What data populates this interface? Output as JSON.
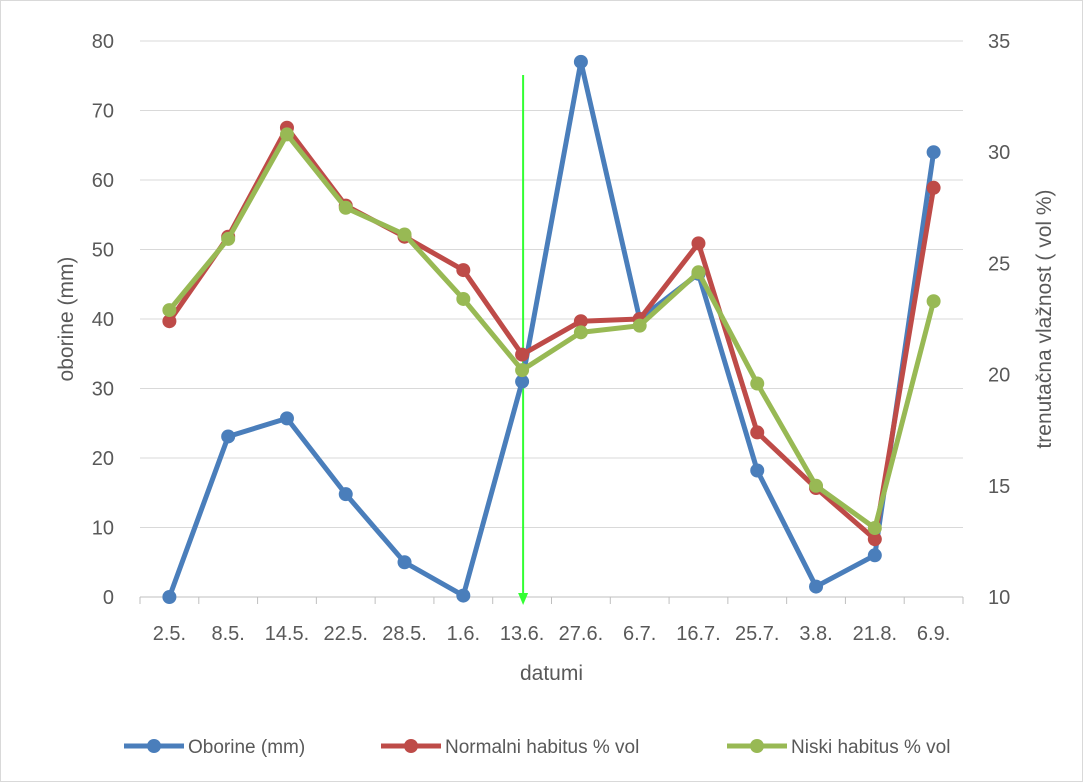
{
  "chart_data": {
    "type": "line",
    "title": "",
    "xlabel": "datumi",
    "ylabel_left": "oborine (mm)",
    "ylabel_right": "trenutačna vlažnost ( vol %)",
    "categories": [
      "2.5.",
      "8.5.",
      "14.5.",
      "22.5.",
      "28.5.",
      "1.6.",
      "13.6.",
      "27.6.",
      "6.7.",
      "16.7.",
      "25.7.",
      "3.8.",
      "21.8.",
      "6.9."
    ],
    "y_left": {
      "min": 0,
      "max": 80,
      "ticks": [
        "0",
        "10",
        "20",
        "30",
        "40",
        "50",
        "60",
        "70",
        "80"
      ]
    },
    "y_right": {
      "min": 10,
      "max": 35,
      "ticks": [
        "10",
        "15",
        "20",
        "25",
        "30",
        "35"
      ]
    },
    "grid": "horizontal",
    "legend_position": "bottom",
    "marker_date": "13.6.",
    "marker_color": "#33ff33",
    "series": [
      {
        "name": "Oborine (mm)",
        "axis": "left",
        "color": "#4a7ebb",
        "values": [
          0,
          23.1,
          25.7,
          14.8,
          5,
          0.2,
          31,
          77,
          40,
          46.5,
          18.2,
          1.5,
          6,
          64
        ]
      },
      {
        "name": "Normalni habitus % vol",
        "axis": "right",
        "color": "#be4b48",
        "values": [
          22.4,
          26.2,
          31.1,
          27.6,
          26.2,
          24.7,
          20.9,
          22.4,
          22.5,
          25.9,
          17.4,
          14.9,
          12.6,
          28.4
        ]
      },
      {
        "name": "Niski habitus % vol",
        "axis": "right",
        "color": "#98b954",
        "values": [
          22.9,
          26.1,
          30.8,
          27.5,
          26.3,
          23.4,
          20.2,
          21.9,
          22.2,
          24.6,
          19.6,
          15,
          13.1,
          23.3
        ]
      }
    ]
  }
}
